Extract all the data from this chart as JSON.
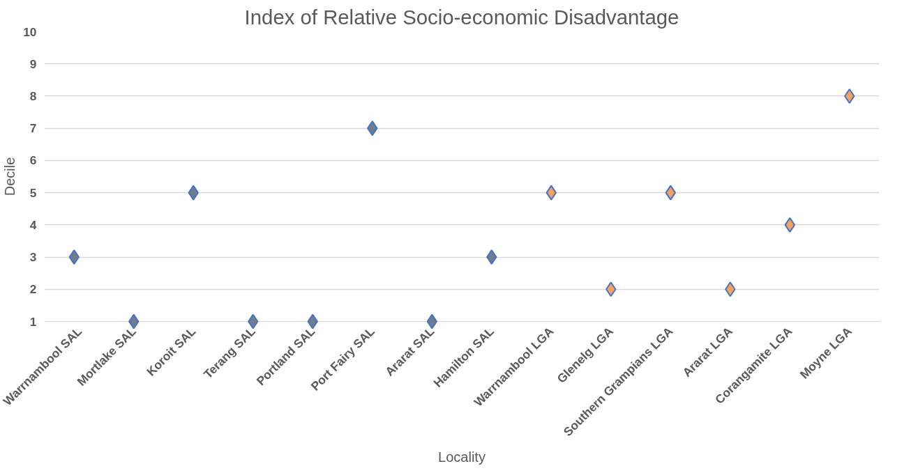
{
  "chart_data": {
    "type": "scatter",
    "title": "Index of Relative Socio-economic Disadvantage",
    "xlabel": "Locality",
    "ylabel": "Decile",
    "categories": [
      "Warrnambool SAL",
      "Mortlake SAL",
      "Koroit SAL",
      "Terang SAL",
      "Portland SAL",
      "Port Fairy SAL",
      "Ararat SAL",
      "Hamilton SAL",
      "Warrnambool LGA",
      "Glenelg LGA",
      "Southern Grampians LGA",
      "Ararat LGA",
      "Corangamite LGA",
      "Moyne LGA"
    ],
    "values": [
      3,
      1,
      5,
      1,
      1,
      7,
      1,
      3,
      5,
      2,
      5,
      2,
      4,
      8
    ],
    "colors": [
      "#6f7d8c",
      "#6f7d8c",
      "#6f7d8c",
      "#6f7d8c",
      "#6f7d8c",
      "#6f7d8c",
      "#6f7d8c",
      "#6f7d8c",
      "#f4a261",
      "#f4a261",
      "#f4a261",
      "#f4a261",
      "#f4a261",
      "#f4a261"
    ],
    "ylim": [
      1,
      10
    ],
    "yticks": [
      1,
      2,
      3,
      4,
      5,
      6,
      7,
      8,
      9,
      10
    ],
    "grid": "y",
    "marker": "diamond"
  }
}
